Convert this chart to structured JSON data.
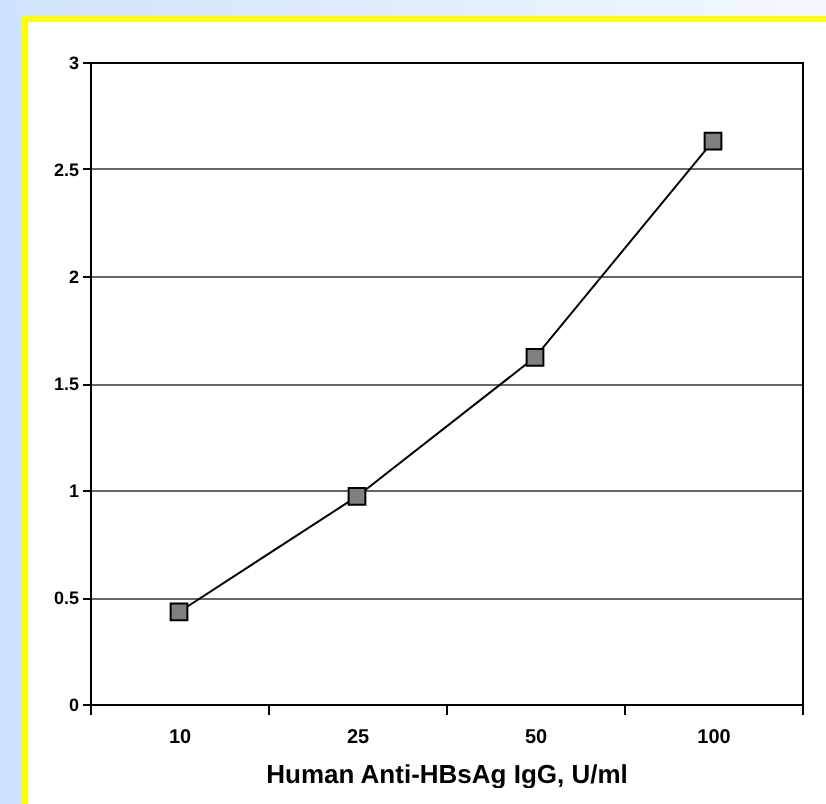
{
  "chart_data": {
    "type": "line",
    "xlabel": "Human Anti-HBsAg IgG, U/ml",
    "categories": [
      "10",
      "25",
      "50",
      "100"
    ],
    "series": [
      {
        "color": "#808080",
        "values": [
          0.43,
          0.97,
          1.62,
          2.63
        ]
      }
    ],
    "ylim": [
      0,
      3
    ],
    "yticks": [
      0,
      0.5,
      1,
      1.5,
      2,
      2.5,
      3
    ],
    "grid": "y",
    "marker": "square",
    "line_style": "solid",
    "legend": false
  }
}
